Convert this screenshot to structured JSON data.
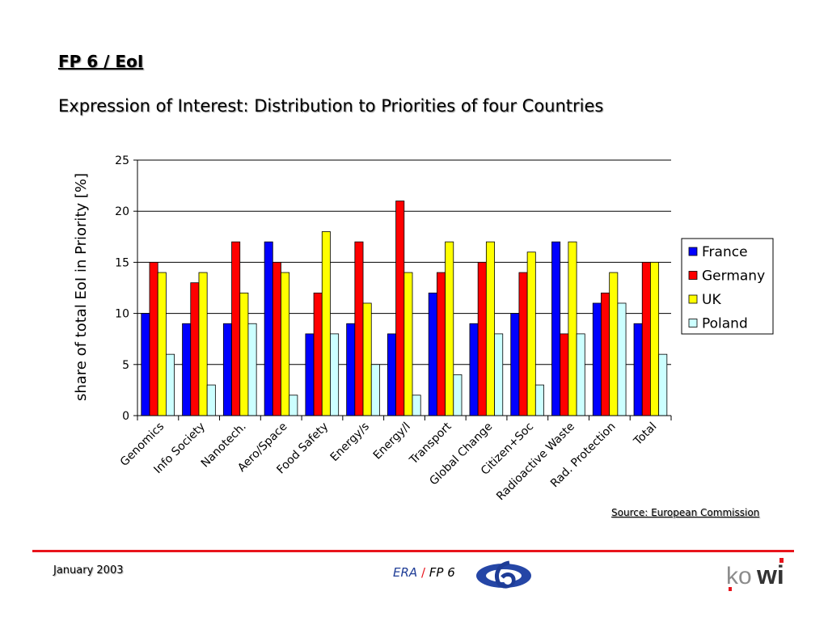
{
  "slide": {
    "title": "FP 6 / EoI",
    "subtitle": "Expression of Interest: Distribution to Priorities of four Countries",
    "source": "Source: European Commission",
    "date": "January 2003",
    "footer_era": "ERA",
    "footer_sep": "/",
    "footer_fp": "FP 6",
    "kowi_logo_text": "kowi"
  },
  "chart_data": {
    "type": "bar",
    "title": "",
    "xlabel": "",
    "ylabel": "share of total EoI in Priority [%]",
    "ylim": [
      0,
      25
    ],
    "yticks": [
      0,
      5,
      10,
      15,
      20,
      25
    ],
    "grid": true,
    "legend_position": "right",
    "categories": [
      "Genomics",
      "Info Society",
      "Nanotech.",
      "Aero/Space",
      "Food Safety",
      "Energy/s",
      "Energy/l",
      "Transport",
      "Global Change",
      "Citizen+Soc",
      "Radioactive Waste",
      "Rad. Protection",
      "Total"
    ],
    "series": [
      {
        "name": "France",
        "color": "#0000ff",
        "values": [
          10,
          9,
          9,
          17,
          8,
          9,
          8,
          12,
          9,
          10,
          17,
          11,
          9
        ]
      },
      {
        "name": "Germany",
        "color": "#ff0000",
        "values": [
          15,
          13,
          17,
          15,
          12,
          17,
          21,
          14,
          15,
          14,
          8,
          12,
          15
        ]
      },
      {
        "name": "UK",
        "color": "#ffff00",
        "values": [
          14,
          14,
          12,
          14,
          18,
          11,
          14,
          17,
          17,
          16,
          17,
          14,
          15
        ]
      },
      {
        "name": "Poland",
        "color": "#ccffff",
        "values": [
          6,
          3,
          9,
          2,
          8,
          5,
          2,
          4,
          8,
          3,
          8,
          11,
          6
        ]
      }
    ]
  }
}
